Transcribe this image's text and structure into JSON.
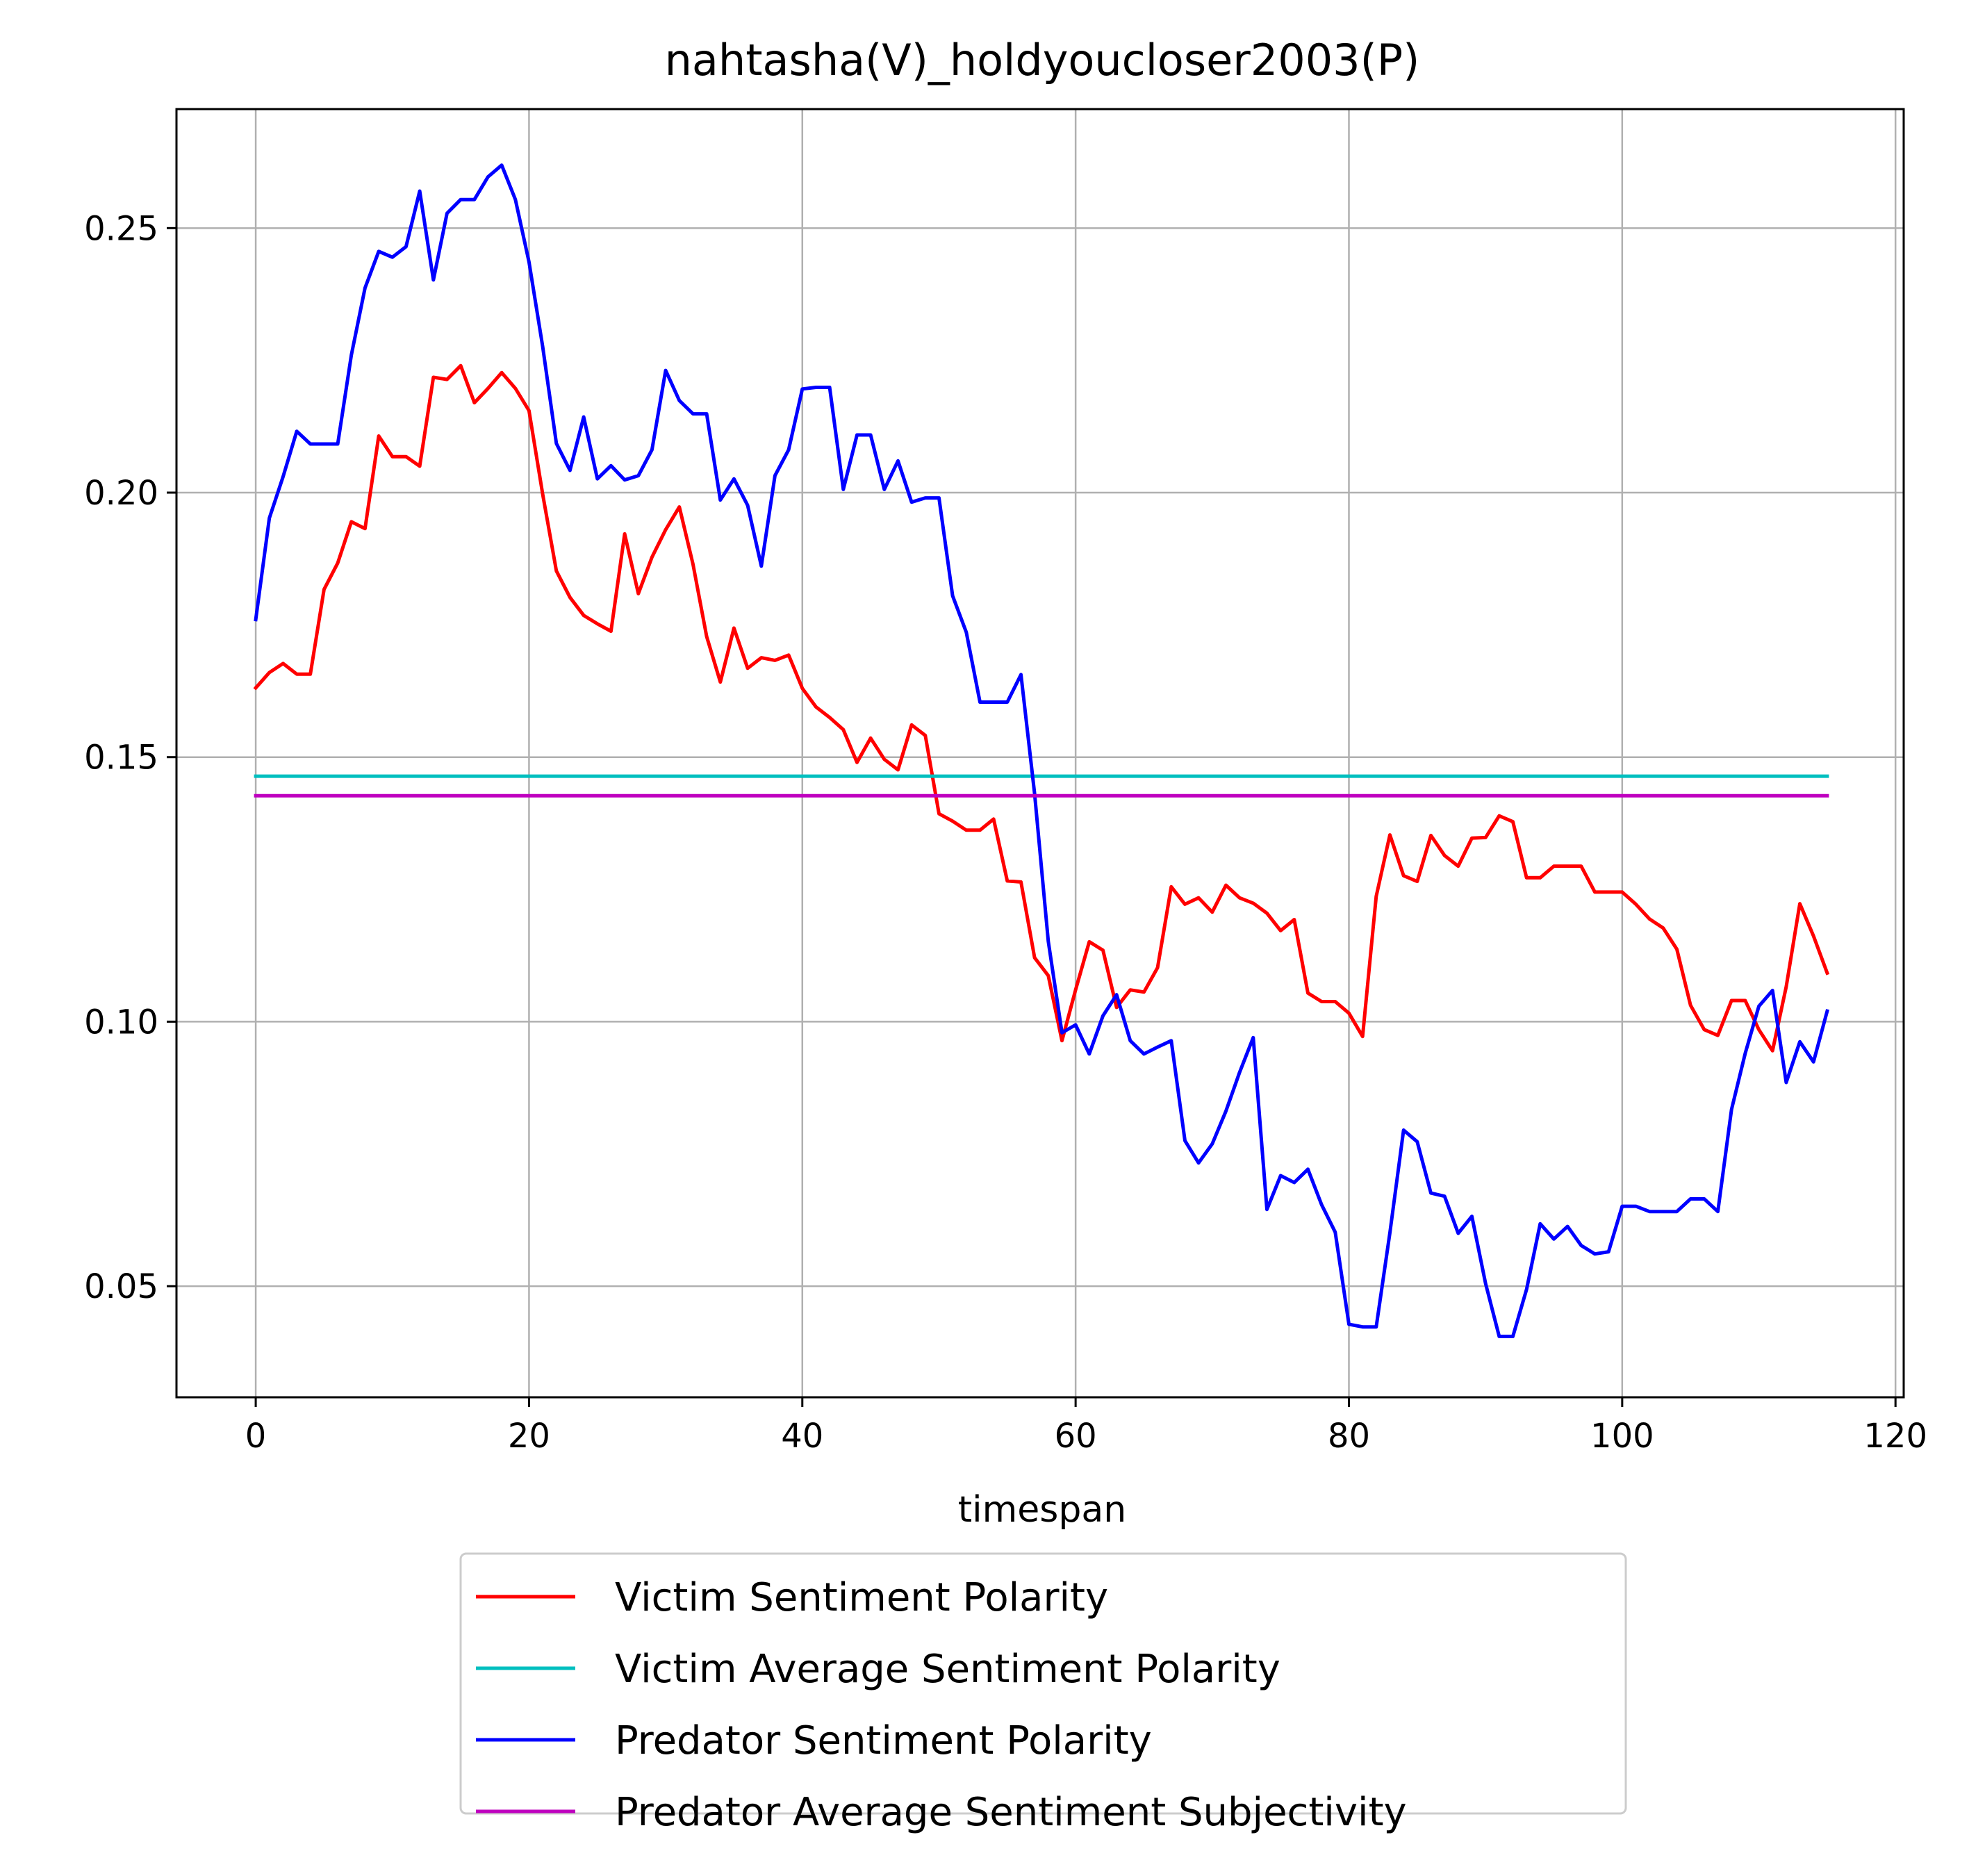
{
  "chart_data": {
    "type": "line",
    "title": "nahtasha(V)_holdyoucloser2003(P)",
    "xlabel": "timespan",
    "ylabel": "",
    "xlim": [
      -5.8,
      120.6
    ],
    "ylim": [
      0.029,
      0.2725
    ],
    "xticks": [
      0,
      20,
      40,
      60,
      80,
      100,
      120
    ],
    "xtick_labels": [
      "0",
      "20",
      "40",
      "60",
      "80",
      "100",
      "120"
    ],
    "yticks": [
      0.05,
      0.1,
      0.15,
      0.2,
      0.25
    ],
    "ytick_labels": [
      "0.05",
      "0.10",
      "0.15",
      "0.20",
      "0.25"
    ],
    "grid": true,
    "legend_position": "below-center",
    "series": [
      {
        "name": "Victim Sentiment Polarity",
        "color": "#ff0000",
        "x": [
          0,
          1,
          2,
          3,
          4,
          5,
          6,
          7,
          8,
          9,
          10,
          11,
          12,
          13,
          14,
          15,
          16,
          17,
          18,
          19,
          20,
          21,
          22,
          23,
          24,
          25,
          26,
          27,
          28,
          29,
          30,
          31,
          32,
          33,
          34,
          35,
          36,
          37,
          38,
          39,
          40,
          41,
          42,
          43,
          44,
          45,
          46,
          47,
          48,
          49,
          50,
          51,
          52,
          53,
          54,
          55,
          56,
          57,
          58,
          59,
          60,
          61,
          62,
          63,
          64,
          65,
          66,
          67,
          68,
          69,
          70,
          71,
          72,
          73,
          74,
          75,
          76,
          77,
          78,
          79,
          80,
          81,
          82,
          83,
          84,
          85,
          86,
          87,
          88,
          89,
          90,
          91,
          92,
          93,
          94,
          95,
          96,
          97,
          98,
          99,
          100,
          101,
          102,
          103,
          104,
          105,
          106,
          107,
          108,
          109,
          110,
          111,
          112,
          113,
          114,
          115
        ],
        "y": [
          0.1631,
          0.166,
          0.1677,
          0.1657,
          0.1657,
          0.1817,
          0.1867,
          0.1945,
          0.1932,
          0.2107,
          0.2068,
          0.2068,
          0.205,
          0.2218,
          0.2214,
          0.224,
          0.217,
          0.2197,
          0.2227,
          0.2197,
          0.2155,
          0.1997,
          0.1852,
          0.1802,
          0.1768,
          0.1752,
          0.1738,
          0.1922,
          0.1809,
          0.1878,
          0.193,
          0.1973,
          0.1865,
          0.1728,
          0.1642,
          0.1744,
          0.1668,
          0.1688,
          0.1683,
          0.1693,
          0.163,
          0.1595,
          0.1575,
          0.1552,
          0.149,
          0.1536,
          0.1496,
          0.1476,
          0.1561,
          0.1541,
          0.1393,
          0.1379,
          0.1362,
          0.1362,
          0.1383,
          0.1266,
          0.1264,
          0.1121,
          0.1087,
          0.0964,
          0.106,
          0.1151,
          0.1135,
          0.1027,
          0.106,
          0.1056,
          0.1102,
          0.1255,
          0.1222,
          0.1234,
          0.1207,
          0.1258,
          0.1234,
          0.1224,
          0.1205,
          0.1172,
          0.1193,
          0.1054,
          0.1038,
          0.1038,
          0.1016,
          0.0972,
          0.1237,
          0.1353,
          0.1276,
          0.1265,
          0.1352,
          0.1314,
          0.1294,
          0.1347,
          0.1348,
          0.1389,
          0.1378,
          0.1272,
          0.1272,
          0.1294,
          0.1294,
          0.1294,
          0.1245,
          0.1245,
          0.1245,
          0.1222,
          0.1194,
          0.1177,
          0.1137,
          0.1031,
          0.0985,
          0.0974,
          0.104,
          0.104,
          0.0985,
          0.0945,
          0.1066,
          0.1223,
          0.1162,
          0.1092
        ]
      },
      {
        "name": "Victim Average Sentiment Polarity",
        "color": "#00bfbf",
        "x": [
          0,
          115
        ],
        "y": [
          0.1464,
          0.1464
        ]
      },
      {
        "name": "Predator Sentiment Polarity",
        "color": "#0000ff",
        "x": [
          0,
          1,
          2,
          3,
          4,
          5,
          6,
          7,
          8,
          9,
          10,
          11,
          12,
          13,
          14,
          15,
          16,
          17,
          18,
          19,
          20,
          21,
          22,
          23,
          24,
          25,
          26,
          27,
          28,
          29,
          30,
          31,
          32,
          33,
          34,
          35,
          36,
          37,
          38,
          39,
          40,
          41,
          42,
          43,
          44,
          45,
          46,
          47,
          48,
          49,
          50,
          51,
          52,
          53,
          54,
          55,
          56,
          57,
          58,
          59,
          60,
          61,
          62,
          63,
          64,
          65,
          66,
          67,
          68,
          69,
          70,
          71,
          72,
          73,
          74,
          75,
          76,
          77,
          78,
          79,
          80,
          81,
          82,
          83,
          84,
          85,
          86,
          87,
          88,
          89,
          90,
          91,
          92,
          93,
          94,
          95,
          96,
          97,
          98,
          99,
          100,
          101,
          102,
          103,
          104,
          105,
          106,
          107,
          108,
          109,
          110,
          111,
          112,
          113,
          114,
          115
        ],
        "y": [
          0.176,
          0.1952,
          0.203,
          0.2116,
          0.2092,
          0.2092,
          0.2092,
          0.226,
          0.2387,
          0.2456,
          0.2445,
          0.2465,
          0.257,
          0.2402,
          0.2528,
          0.2554,
          0.2554,
          0.2597,
          0.2619,
          0.2554,
          0.2436,
          0.2276,
          0.2093,
          0.2042,
          0.2143,
          0.2026,
          0.2051,
          0.2024,
          0.2032,
          0.2081,
          0.2231,
          0.2174,
          0.2149,
          0.2149,
          0.1986,
          0.2026,
          0.1976,
          0.1861,
          0.2032,
          0.2081,
          0.2196,
          0.2199,
          0.2199,
          0.2006,
          0.2109,
          0.2109,
          0.2006,
          0.206,
          0.1982,
          0.199,
          0.199,
          0.1805,
          0.1736,
          0.1604,
          0.1604,
          0.1604,
          0.1656,
          0.1431,
          0.1152,
          0.0979,
          0.0994,
          0.0939,
          0.1011,
          0.1051,
          0.0964,
          0.0939,
          0.0952,
          0.0964,
          0.0775,
          0.0733,
          0.0769,
          0.0831,
          0.0904,
          0.097,
          0.0645,
          0.0709,
          0.0696,
          0.0721,
          0.0654,
          0.0602,
          0.0428,
          0.0423,
          0.0423,
          0.0601,
          0.0795,
          0.0773,
          0.0676,
          0.067,
          0.06,
          0.0632,
          0.0505,
          0.0405,
          0.0405,
          0.0494,
          0.0618,
          0.0589,
          0.0613,
          0.0577,
          0.0561,
          0.0565,
          0.0651,
          0.0651,
          0.0641,
          0.0641,
          0.0641,
          0.0665,
          0.0665,
          0.0641,
          0.0834,
          0.094,
          0.1029,
          0.1059,
          0.0885,
          0.0962,
          0.0924,
          0.102
        ]
      },
      {
        "name": "Predator Average Sentiment Subjectivity",
        "color": "#bf00bf",
        "x": [
          0,
          115
        ],
        "y": [
          0.1427,
          0.1427
        ]
      }
    ]
  }
}
